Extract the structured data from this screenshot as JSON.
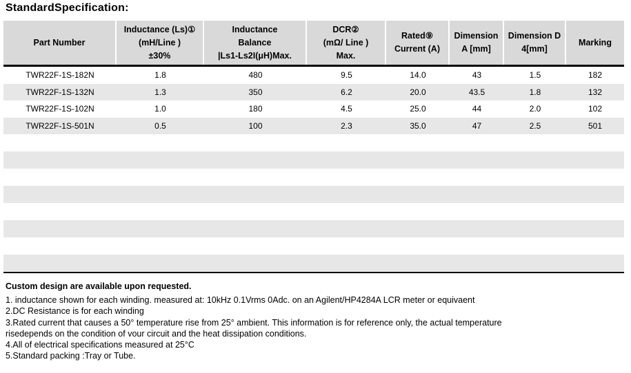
{
  "page": {
    "title": "StandardSpecification:"
  },
  "colors": {
    "header_bg": "#d9d9d9",
    "stripe_bg": "#e7e7e7",
    "thick_border": "#000000"
  },
  "table": {
    "headers": [
      "Part Number",
      "Inductance (Ls)①\n(mH/Line )\n±30%",
      "Inductance\nBalance\n|Ls1-Ls2I(μH)Max.",
      "DCR②\n(mΩ/ Line )\nMax.",
      "Rated⑨\nCurrent (A)",
      "Dimension\nA [mm]",
      "Dimension D\n4[mm]",
      "Marking"
    ],
    "rows": [
      [
        "TWR22F-1S-182N",
        "1.8",
        "480",
        "9.5",
        "14.0",
        "43",
        "1.5",
        "182"
      ],
      [
        "TWR22F-1S-132N",
        "1.3",
        "350",
        "6.2",
        "20.0",
        "43.5",
        "1.8",
        "132"
      ],
      [
        "TWR22F-1S-102N",
        "1.0",
        "180",
        "4.5",
        "25.0",
        "44",
        "2.0",
        "102"
      ],
      [
        "TWR22F-1S-501N",
        "0.5",
        "100",
        "2.3",
        "35.0",
        "47",
        "2.5",
        "501"
      ]
    ]
  },
  "footer": {
    "heading": "Custom design are available upon requested.",
    "notes": [
      "1. inductance shown for each winding. measured at: 10kHz 0.1Vrms 0Adc. on an Agilent/HP4284A LCR meter or equivaent",
      "2.DC Resistance is for each winding",
      "3.Rated current that causes a 50° temperature rise from 25° ambient. This information is for reference only, the actual temperature",
      "risedepends on the condition of vour circuit and the heat dissipation conditions.",
      "4.All of electrical specifications measured at 25°C",
      "5.Standard packing :Tray or Tube."
    ]
  }
}
